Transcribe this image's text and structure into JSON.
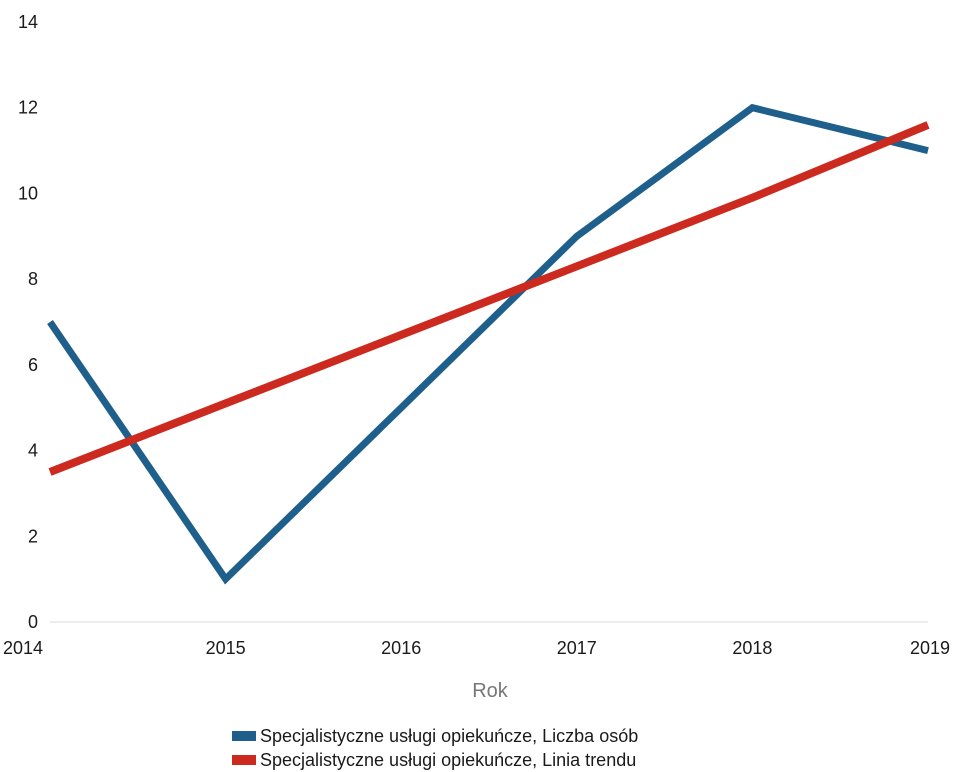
{
  "chart_data": {
    "type": "line",
    "x": [
      "2014",
      "2015",
      "2016",
      "2017",
      "2018",
      "2019"
    ],
    "xlabel": "Rok",
    "ylabel": "",
    "ylim": [
      0,
      14
    ],
    "yticks": [
      "0",
      "2",
      "4",
      "6",
      "8",
      "10",
      "12",
      "14"
    ],
    "grid": false,
    "legend_position": "bottom",
    "series": [
      {
        "name": "Specjalistyczne usługi opiekuńcze, Liczba osób",
        "values": [
          7,
          1,
          5,
          9,
          12,
          11
        ],
        "color": "#1f5f8b"
      },
      {
        "name": "Specjalistyczne usługi opiekuńcze, Linia trendu",
        "values": [
          3.5,
          5.1,
          6.7,
          8.3,
          9.9,
          11.6
        ],
        "color": "#cc2a1e"
      }
    ]
  }
}
